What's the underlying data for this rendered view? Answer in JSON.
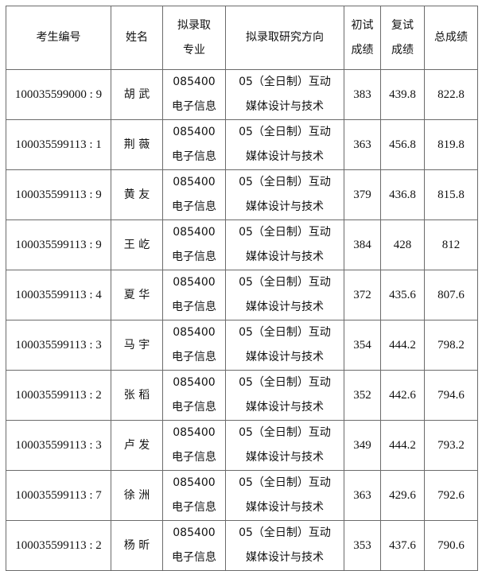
{
  "headers": [
    "考生编号",
    "姓名",
    "拟录取专业",
    "拟录取研究方向",
    "初试成绩",
    "复试成绩",
    "总成绩"
  ],
  "rows": [
    {
      "id": "100035599000 : 9",
      "name": "胡 武",
      "major_code": "085400",
      "major_name": "电子信息",
      "direction_1": "05（全日制）互动",
      "direction_2": "媒体设计与技术",
      "initial": "383",
      "retest": "439.8",
      "total": "822.8"
    },
    {
      "id": "100035599113 : 1",
      "name": "荆 薇",
      "major_code": "085400",
      "major_name": "电子信息",
      "direction_1": "05（全日制）互动",
      "direction_2": "媒体设计与技术",
      "initial": "363",
      "retest": "456.8",
      "total": "819.8"
    },
    {
      "id": "100035599113 : 9",
      "name": "黄 友",
      "major_code": "085400",
      "major_name": "电子信息",
      "direction_1": "05（全日制）互动",
      "direction_2": "媒体设计与技术",
      "initial": "379",
      "retest": "436.8",
      "total": "815.8"
    },
    {
      "id": "100035599113 : 9",
      "name": "王 屹",
      "major_code": "085400",
      "major_name": "电子信息",
      "direction_1": "05（全日制）互动",
      "direction_2": "媒体设计与技术",
      "initial": "384",
      "retest": "428",
      "total": "812"
    },
    {
      "id": "100035599113 : 4",
      "name": "夏 华",
      "major_code": "085400",
      "major_name": "电子信息",
      "direction_1": "05（全日制）互动",
      "direction_2": "媒体设计与技术",
      "initial": "372",
      "retest": "435.6",
      "total": "807.6"
    },
    {
      "id": "100035599113 : 3",
      "name": "马 宇",
      "major_code": "085400",
      "major_name": "电子信息",
      "direction_1": "05（全日制）互动",
      "direction_2": "媒体设计与技术",
      "initial": "354",
      "retest": "444.2",
      "total": "798.2"
    },
    {
      "id": "100035599113 : 2",
      "name": "张 稻",
      "major_code": "085400",
      "major_name": "电子信息",
      "direction_1": "05（全日制）互动",
      "direction_2": "媒体设计与技术",
      "initial": "352",
      "retest": "442.6",
      "total": "794.6"
    },
    {
      "id": "100035599113 : 3",
      "name": "卢 发",
      "major_code": "085400",
      "major_name": "电子信息",
      "direction_1": "05（全日制）互动",
      "direction_2": "媒体设计与技术",
      "initial": "349",
      "retest": "444.2",
      "total": "793.2"
    },
    {
      "id": "100035599113 : 7",
      "name": "徐 洲",
      "major_code": "085400",
      "major_name": "电子信息",
      "direction_1": "05（全日制）互动",
      "direction_2": "媒体设计与技术",
      "initial": "363",
      "retest": "429.6",
      "total": "792.6"
    },
    {
      "id": "100035599113 : 2",
      "name": "杨 昕",
      "major_code": "085400",
      "major_name": "电子信息",
      "direction_1": "05（全日制）互动",
      "direction_2": "媒体设计与技术",
      "initial": "353",
      "retest": "437.6",
      "total": "790.6"
    }
  ]
}
